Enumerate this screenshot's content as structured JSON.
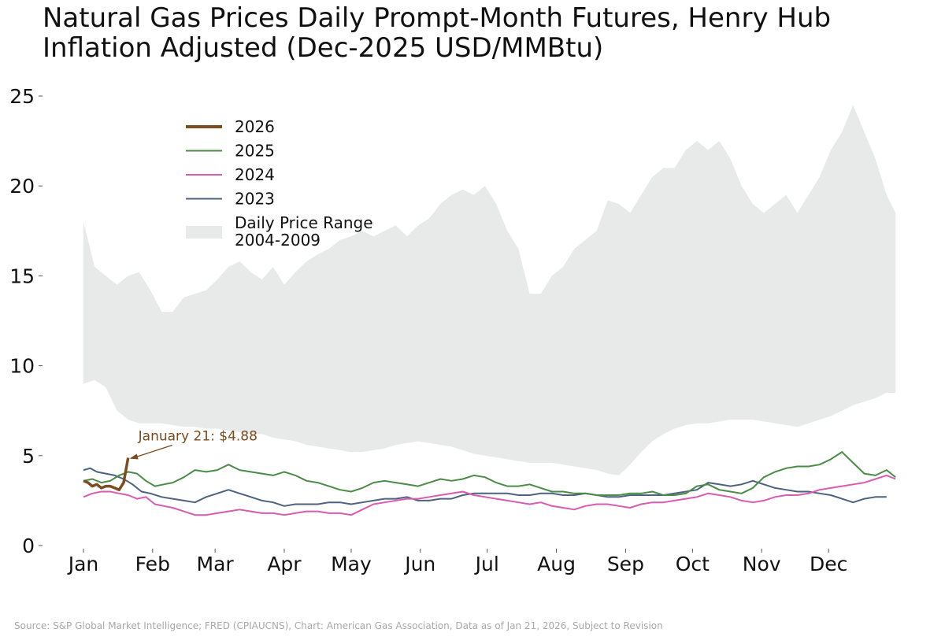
{
  "title": {
    "line1": "Natural Gas Prices Daily Prompt-Month Futures, Henry Hub",
    "line2": "Inflation Adjusted (Dec-2025 USD/MMBtu)"
  },
  "source": "Source: S&P Global Market Intelligence; FRED (CPIAUCNS), Chart: American Gas Association, Data as of Jan 21, 2026, Subject to Revision",
  "chart_data": {
    "type": "line",
    "title": "Natural Gas Prices Daily Prompt-Month Futures, Henry Hub Inflation Adjusted (Dec-2025 USD/MMBtu)",
    "xlabel": "",
    "ylabel": "",
    "ylim": [
      0,
      25
    ],
    "xlim": [
      0,
      365
    ],
    "y_ticks": [
      0,
      5,
      10,
      15,
      20,
      25
    ],
    "x_tick_labels": [
      "Jan",
      "Feb",
      "Mar",
      "Apr",
      "May",
      "Jun",
      "Jul",
      "Aug",
      "Sep",
      "Oct",
      "Nov",
      "Dec"
    ],
    "x_tick_days": [
      0,
      31,
      59,
      90,
      120,
      151,
      181,
      212,
      243,
      273,
      304,
      334
    ],
    "grid": false,
    "legend_position": "top-left",
    "colors": {
      "2026": "#7b4e22",
      "2025": "#4a8c46",
      "2024": "#d95bb0",
      "2023": "#4d6180",
      "range": "#e8e9e9",
      "annotation": "#7a4a1c"
    },
    "range": {
      "name": "Daily Price Range 2004-2009",
      "legend_line1": "Daily Price Range",
      "legend_line2": "2004-2009",
      "x": [
        0,
        5,
        10,
        15,
        20,
        25,
        30,
        35,
        40,
        45,
        50,
        55,
        60,
        65,
        70,
        75,
        80,
        85,
        90,
        95,
        100,
        105,
        110,
        115,
        120,
        125,
        130,
        135,
        140,
        145,
        150,
        155,
        160,
        165,
        170,
        175,
        180,
        185,
        190,
        195,
        200,
        205,
        210,
        215,
        220,
        225,
        230,
        235,
        240,
        245,
        250,
        255,
        260,
        265,
        270,
        275,
        280,
        285,
        290,
        295,
        300,
        305,
        310,
        315,
        320,
        325,
        330,
        335,
        340,
        345,
        350,
        355,
        360,
        364
      ],
      "upper": [
        18,
        15.5,
        15,
        14.5,
        15,
        15.2,
        14.2,
        13,
        13,
        13.8,
        14,
        14.2,
        14.8,
        15.5,
        15.8,
        15.2,
        14.8,
        15.5,
        14.5,
        15.2,
        15.8,
        16.2,
        16.5,
        17,
        17.2,
        17.5,
        17.2,
        17.5,
        17.8,
        17.2,
        17.8,
        18.2,
        19,
        19.5,
        19.8,
        19.5,
        20,
        19,
        17.5,
        16.5,
        14,
        14,
        15,
        15.5,
        16.5,
        17,
        17.5,
        19.2,
        19,
        18.5,
        19.5,
        20.5,
        21,
        21,
        22,
        22.5,
        22,
        22.5,
        21.5,
        20,
        19,
        18.5,
        19,
        19.5,
        18.5,
        19.5,
        20.5,
        22,
        23,
        24.5,
        23,
        21.5,
        19.5,
        18.5
      ],
      "lower": [
        9,
        9.2,
        8.8,
        7.5,
        7,
        6.8,
        6.8,
        6.8,
        6.7,
        6.6,
        6.6,
        6.5,
        6.5,
        6.4,
        6.3,
        6.2,
        6.2,
        6,
        5.9,
        5.8,
        5.6,
        5.5,
        5.4,
        5.3,
        5.2,
        5.2,
        5.3,
        5.4,
        5.6,
        5.7,
        5.8,
        5.7,
        5.6,
        5.5,
        5.3,
        5.1,
        5,
        4.9,
        4.8,
        4.7,
        4.6,
        4.6,
        4.6,
        4.5,
        4.4,
        4.3,
        4.2,
        4,
        3.9,
        4.5,
        5.2,
        5.8,
        6.2,
        6.5,
        6.7,
        6.8,
        6.8,
        6.9,
        7,
        7,
        7,
        6.9,
        6.8,
        6.7,
        6.6,
        6.8,
        7,
        7.2,
        7.5,
        7.8,
        8,
        8.2,
        8.5,
        8.5
      ]
    },
    "series": [
      {
        "name": "2023",
        "x": [
          0,
          3,
          6,
          10,
          14,
          18,
          22,
          26,
          30,
          35,
          40,
          45,
          50,
          55,
          60,
          65,
          70,
          75,
          80,
          85,
          90,
          95,
          100,
          105,
          110,
          115,
          120,
          125,
          130,
          135,
          140,
          145,
          150,
          155,
          160,
          165,
          170,
          175,
          180,
          185,
          190,
          195,
          200,
          205,
          210,
          215,
          220,
          225,
          230,
          235,
          240,
          245,
          250,
          255,
          260,
          265,
          270,
          275,
          280,
          285,
          290,
          295,
          300,
          305,
          310,
          315,
          320,
          325,
          330,
          335,
          340,
          345,
          350,
          355,
          360
        ],
        "values": [
          4.2,
          4.3,
          4.1,
          4.0,
          3.9,
          3.7,
          3.4,
          3.0,
          2.9,
          2.7,
          2.6,
          2.5,
          2.4,
          2.7,
          2.9,
          3.1,
          2.9,
          2.7,
          2.5,
          2.4,
          2.2,
          2.3,
          2.3,
          2.3,
          2.4,
          2.4,
          2.3,
          2.4,
          2.5,
          2.6,
          2.6,
          2.7,
          2.5,
          2.5,
          2.6,
          2.6,
          2.8,
          2.9,
          2.9,
          2.9,
          2.9,
          2.8,
          2.8,
          2.9,
          2.9,
          2.8,
          2.8,
          2.9,
          2.8,
          2.7,
          2.7,
          2.8,
          2.8,
          2.8,
          2.8,
          2.9,
          3.0,
          3.1,
          3.5,
          3.4,
          3.3,
          3.4,
          3.6,
          3.4,
          3.2,
          3.1,
          3.0,
          3.0,
          2.9,
          2.8,
          2.6,
          2.4,
          2.6,
          2.7,
          2.7
        ]
      },
      {
        "name": "2024",
        "x": [
          0,
          4,
          8,
          12,
          16,
          20,
          24,
          28,
          32,
          36,
          40,
          45,
          50,
          55,
          60,
          65,
          70,
          75,
          80,
          85,
          90,
          95,
          100,
          105,
          110,
          115,
          120,
          125,
          130,
          135,
          140,
          145,
          150,
          155,
          160,
          165,
          170,
          175,
          180,
          185,
          190,
          195,
          200,
          205,
          210,
          215,
          220,
          225,
          230,
          235,
          240,
          245,
          250,
          255,
          260,
          265,
          270,
          275,
          280,
          285,
          290,
          295,
          300,
          305,
          310,
          315,
          320,
          325,
          330,
          335,
          340,
          345,
          350,
          355,
          360,
          364
        ],
        "values": [
          2.7,
          2.9,
          3.0,
          3.0,
          2.9,
          2.8,
          2.6,
          2.7,
          2.3,
          2.2,
          2.1,
          1.9,
          1.7,
          1.7,
          1.8,
          1.9,
          2.0,
          1.9,
          1.8,
          1.8,
          1.7,
          1.8,
          1.9,
          1.9,
          1.8,
          1.8,
          1.7,
          2.0,
          2.3,
          2.4,
          2.5,
          2.6,
          2.6,
          2.7,
          2.8,
          2.9,
          3.0,
          2.8,
          2.7,
          2.6,
          2.5,
          2.4,
          2.3,
          2.4,
          2.2,
          2.1,
          2.0,
          2.2,
          2.3,
          2.3,
          2.2,
          2.1,
          2.3,
          2.4,
          2.4,
          2.5,
          2.6,
          2.7,
          2.9,
          2.8,
          2.7,
          2.5,
          2.4,
          2.5,
          2.7,
          2.8,
          2.8,
          2.9,
          3.1,
          3.2,
          3.3,
          3.4,
          3.5,
          3.7,
          3.9,
          3.7
        ]
      },
      {
        "name": "2025",
        "x": [
          0,
          4,
          8,
          12,
          16,
          20,
          24,
          28,
          32,
          36,
          40,
          45,
          50,
          55,
          60,
          65,
          70,
          75,
          80,
          85,
          90,
          95,
          100,
          105,
          110,
          115,
          120,
          125,
          130,
          135,
          140,
          145,
          150,
          155,
          160,
          165,
          170,
          175,
          180,
          185,
          190,
          195,
          200,
          205,
          210,
          215,
          220,
          225,
          230,
          235,
          240,
          245,
          250,
          255,
          260,
          265,
          270,
          275,
          280,
          285,
          290,
          295,
          300,
          305,
          310,
          315,
          320,
          325,
          330,
          335,
          340,
          345,
          350,
          355,
          360,
          364
        ],
        "values": [
          3.6,
          3.7,
          3.5,
          3.6,
          3.9,
          4.1,
          4.0,
          3.6,
          3.3,
          3.4,
          3.5,
          3.8,
          4.2,
          4.1,
          4.2,
          4.5,
          4.2,
          4.1,
          4.0,
          3.9,
          4.1,
          3.9,
          3.6,
          3.5,
          3.3,
          3.1,
          3.0,
          3.2,
          3.5,
          3.6,
          3.5,
          3.4,
          3.3,
          3.5,
          3.7,
          3.6,
          3.7,
          3.9,
          3.8,
          3.5,
          3.3,
          3.3,
          3.4,
          3.2,
          3.0,
          3.0,
          2.9,
          2.9,
          2.8,
          2.8,
          2.8,
          2.9,
          2.9,
          3.0,
          2.8,
          2.8,
          2.9,
          3.3,
          3.4,
          3.1,
          3.0,
          2.9,
          3.2,
          3.8,
          4.1,
          4.3,
          4.4,
          4.4,
          4.5,
          4.8,
          5.2,
          4.6,
          4.0,
          3.9,
          4.2,
          3.8
        ]
      },
      {
        "name": "2026",
        "x": [
          0,
          2,
          4,
          6,
          8,
          10,
          12,
          14,
          16,
          18,
          20
        ],
        "values": [
          3.6,
          3.5,
          3.3,
          3.4,
          3.2,
          3.3,
          3.3,
          3.2,
          3.1,
          3.5,
          4.88
        ]
      }
    ],
    "annotation": {
      "text": "January 21: $4.88",
      "x": 20,
      "y": 4.88
    }
  }
}
